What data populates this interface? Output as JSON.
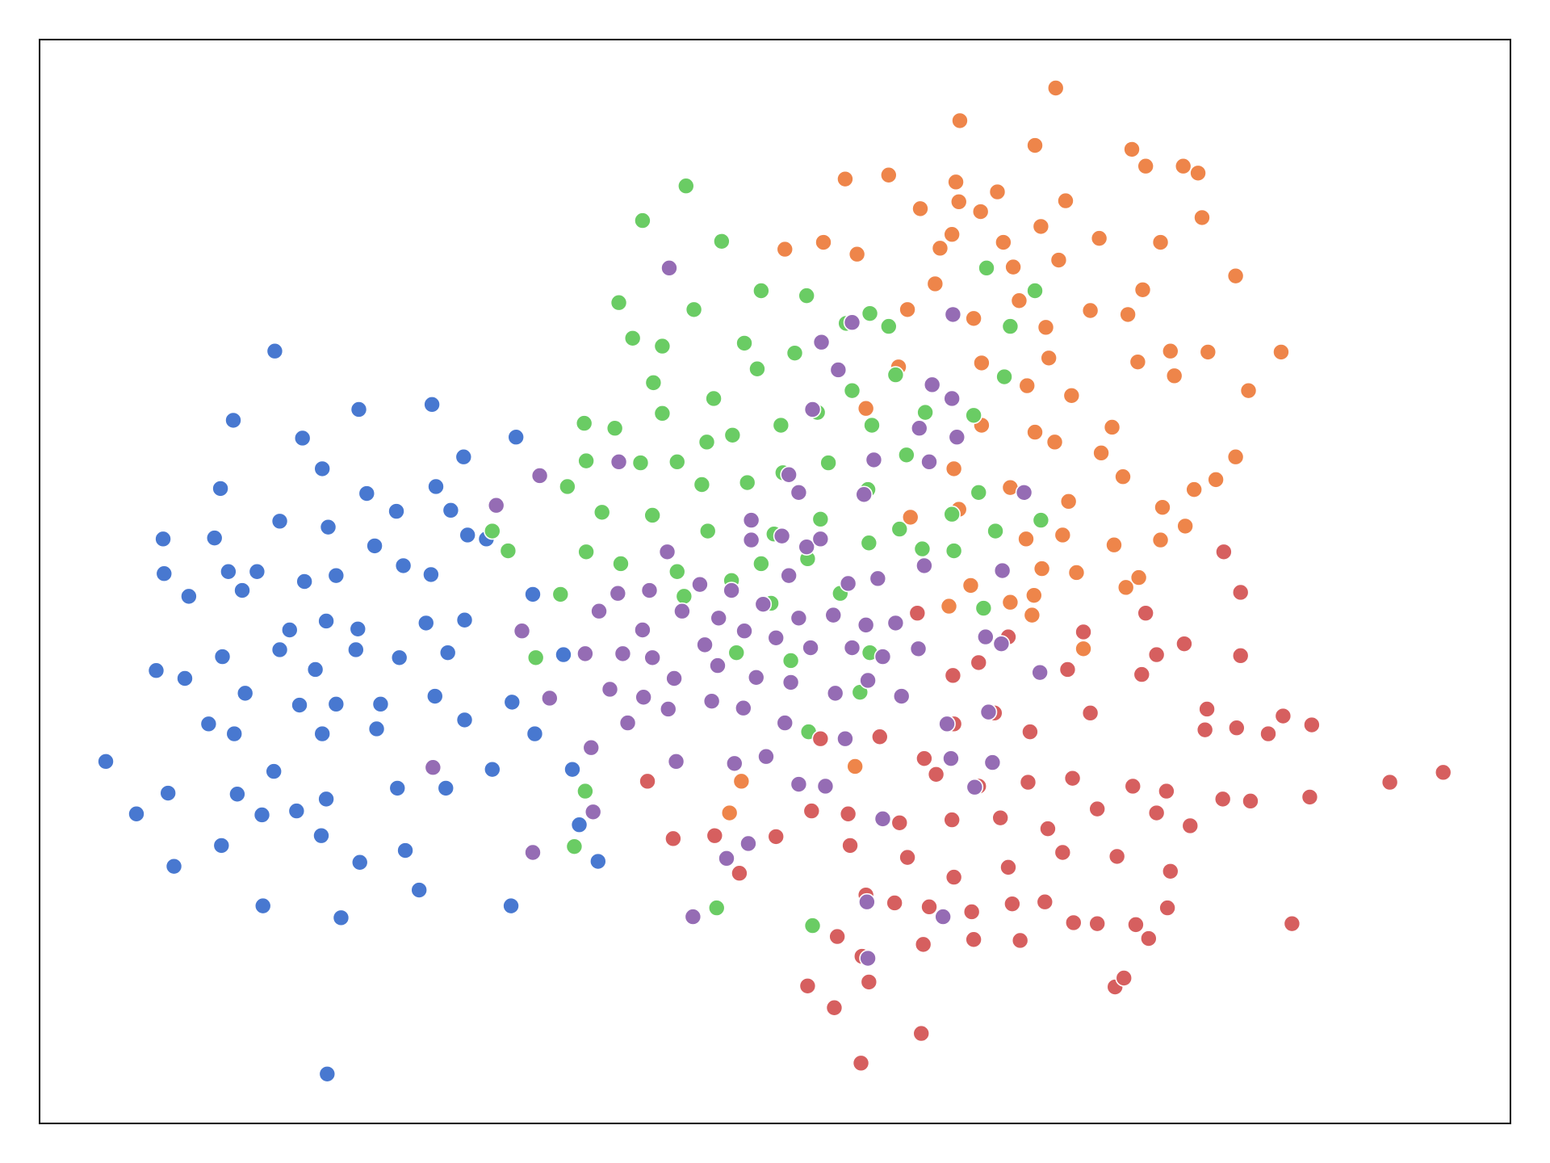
{
  "chart_data": {
    "type": "scatter",
    "xlim": [
      40,
      1528
    ],
    "ylim": [
      40,
      1136
    ],
    "series": [
      {
        "color": "#4878d0",
        "x": [
          278,
          236,
          363,
          437,
          306,
          469,
          522,
          326,
          223,
          371,
          441,
          401,
          456,
          283,
          165,
          217,
          332,
          379,
          473,
          166,
          231,
          260,
          308,
          191,
          245,
          340,
          408,
          436,
          293,
          330,
          362,
          431,
          470,
          158,
          187,
          225,
          283,
          319,
          360,
          404,
          453,
          248,
          303,
          340,
          385,
          440,
          518,
          211,
          237,
          326,
          381,
          470,
          107,
          170,
          138,
          240,
          277,
          330,
          402,
          451,
          498,
          541,
          176,
          224,
          266,
          325,
          364,
          424,
          345,
          517,
          331,
          605,
          586,
          579,
          570,
          539,
          492,
          300,
          265,
          410
        ],
        "y": [
          821,
          751,
          762,
          767,
          733,
          714,
          734,
          702,
          682,
          677,
          684,
          659,
          660,
          649,
          631,
          632,
          643,
          624,
          635,
          596,
          598,
          598,
          588,
          573,
          579,
          594,
          604,
          595,
          539,
          548,
          540,
          546,
          549,
          498,
          490,
          512,
          519,
          499,
          519,
          511,
          516,
          475,
          463,
          464,
          464,
          472,
          466,
          444,
          434,
          434,
          439,
          448,
          406,
          374,
          353,
          373,
          396,
          368,
          379,
          379,
          398,
          434,
          300,
          321,
          260,
          331,
          304,
          276,
          248,
          260,
          90,
          305,
          342,
          398,
          514,
          575,
          631,
          356,
          352,
          316
        ]
      },
      {
        "color": "#ee854a",
        "x": [
          1068,
          971,
          1047,
          1145,
          1159,
          1197,
          1212,
          855,
          899,
          967,
          1009,
          931,
          970,
          992,
          1078,
          1216,
          1053,
          833,
          963,
          1015,
          1112,
          1174,
          794,
          867,
          951,
          1025,
          1071,
          1250,
          946,
          1156,
          1031,
          1103,
          1141,
          918,
          985,
          1058,
          1296,
          1222,
          1184,
          1151,
          993,
          1061,
          1188,
          909,
          1039,
          1084,
          1263,
          1125,
          876,
          993,
          1047,
          1067,
          1250,
          1230,
          1208,
          1136,
          1114,
          965,
          1022,
          1081,
          1176,
          1199,
          1174,
          1127,
          921,
          970,
          1038,
          1075,
          1089,
          1139,
          1152,
          1046,
          1022,
          1044,
          1096,
          960,
          738,
          865,
          750,
          982,
          1054
        ],
        "y": [
          1087,
          1054,
          1029,
          1025,
          1008,
          1008,
          1001,
          995,
          999,
          992,
          982,
          965,
          972,
          962,
          973,
          956,
          947,
          931,
          939,
          931,
          935,
          931,
          924,
          919,
          925,
          906,
          913,
          897,
          889,
          883,
          872,
          862,
          858,
          863,
          854,
          845,
          820,
          820,
          821,
          810,
          809,
          814,
          796,
          805,
          786,
          776,
          781,
          744,
          763,
          746,
          739,
          729,
          714,
          691,
          681,
          694,
          718,
          702,
          683,
          669,
          663,
          644,
          630,
          625,
          653,
          661,
          631,
          635,
          597,
          582,
          592,
          574,
          567,
          554,
          520,
          563,
          354,
          401,
          386,
          584,
          601
        ]
      },
      {
        "color": "#6acc64",
        "x": [
          694,
          650,
          730,
          626,
          702,
          770,
          816,
          640,
          670,
          753,
          804,
          856,
          880,
          899,
          661,
          722,
          766,
          862,
          906,
          998,
          1047,
          1022,
          1016,
          591,
          622,
          670,
          715,
          741,
          790,
          827,
          882,
          936,
          969,
          593,
          574,
          648,
          685,
          710,
          756,
          792,
          838,
          878,
          917,
          985,
          498,
          514,
          609,
          660,
          716,
          783,
          830,
          910,
          1007,
          1053,
          593,
          628,
          567,
          685,
          740,
          770,
          817,
          879,
          933,
          965,
          692,
          780,
          850,
          995,
          542,
          745,
          800,
          880,
          963,
          990,
          592,
          581,
          725,
          822,
          818,
          870
        ],
        "y": [
          988,
          953,
          932,
          870,
          863,
          882,
          877,
          834,
          826,
          829,
          819,
          849,
          859,
          846,
          789,
          773,
          803,
          781,
          797,
          905,
          882,
          846,
          795,
          748,
          743,
          758,
          729,
          736,
          746,
          759,
          746,
          759,
          734,
          710,
          684,
          708,
          709,
          686,
          688,
          698,
          708,
          681,
          716,
          756,
          639,
          619,
          658,
          655,
          639,
          636,
          651,
          641,
          639,
          650,
          618,
          606,
          575,
          598,
          589,
          606,
          611,
          627,
          621,
          619,
          573,
          566,
          576,
          561,
          511,
          516,
          508,
          516,
          656,
          678,
          376,
          320,
          258,
          240,
          436,
          476
        ]
      },
      {
        "color": "#d65f5f",
        "x": [
          1238,
          1255,
          1159,
          1096,
          1020,
          1170,
          1198,
          1255,
          1080,
          1155,
          964,
          1221,
          1298,
          1327,
          1251,
          1283,
          1219,
          1103,
          1042,
          1006,
          965,
          890,
          830,
          935,
          1406,
          1460,
          1325,
          1265,
          1237,
          1180,
          1146,
          1085,
          1040,
          990,
          947,
          655,
          858,
          910,
          963,
          1012,
          1060,
          1110,
          1170,
          1204,
          681,
          723,
          785,
          860,
          918,
          965,
          1020,
          1075,
          1130,
          1184,
          1307,
          748,
          821,
          876,
          905,
          940,
          983,
          1024,
          1057,
          1110,
          1149,
          1181,
          1162,
          1086,
          1032,
          985,
          934,
          847,
          872,
          817,
          844,
          879,
          1128,
          1137,
          932,
          871,
          928,
          990
        ],
        "y": [
          618,
          577,
          556,
          537,
          532,
          514,
          525,
          513,
          499,
          494,
          493,
          459,
          452,
          443,
          440,
          434,
          438,
          455,
          436,
          455,
          444,
          431,
          429,
          409,
          385,
          395,
          370,
          366,
          368,
          376,
          381,
          389,
          385,
          381,
          393,
          386,
          353,
          344,
          347,
          349,
          338,
          358,
          354,
          341,
          328,
          331,
          330,
          321,
          309,
          289,
          299,
          314,
          310,
          295,
          242,
          293,
          356,
          271,
          263,
          259,
          254,
          262,
          264,
          242,
          241,
          258,
          227,
          243,
          225,
          226,
          221,
          229,
          209,
          179,
          157,
          183,
          178,
          187,
          131,
          101,
          556,
          506
        ]
      },
      {
        "color": "#956cb4",
        "x": [
          677,
          964,
          862,
          831,
          848,
          943,
          963,
          822,
          930,
          968,
          884,
          940,
          626,
          546,
          502,
          798,
          808,
          874,
          1036,
          760,
          791,
          816,
          760,
          830,
          675,
          657,
          708,
          740,
          798,
          858,
          888,
          935,
          1014,
          625,
          606,
          650,
          690,
          727,
          772,
          808,
          843,
          876,
          906,
          997,
          1013,
          1052,
          528,
          592,
          630,
          660,
          713,
          753,
          785,
          820,
          862,
          893,
          929,
          556,
          617,
          651,
          682,
          726,
          765,
          800,
          845,
          878,
          912,
          1000,
          598,
          635,
          676,
          720,
          752,
          794,
          855,
          958,
          962,
          1004,
          986,
          438,
          684,
          743,
          775,
          808,
          835,
          893,
          539,
          600,
          735,
          757,
          877,
          954,
          878,
          701
        ],
        "y": [
          905,
          858,
          850,
          830,
          802,
          787,
          773,
          762,
          743,
          734,
          711,
          709,
          709,
          695,
          665,
          696,
          678,
          676,
          678,
          650,
          634,
          623,
          630,
          631,
          618,
          579,
          585,
          579,
          594,
          586,
          591,
          604,
          599,
          576,
          558,
          539,
          558,
          551,
          565,
          551,
          554,
          544,
          546,
          532,
          525,
          496,
          538,
          515,
          515,
          511,
          524,
          538,
          531,
          521,
          521,
          512,
          520,
          470,
          479,
          471,
          490,
          503,
          491,
          486,
          475,
          488,
          472,
          456,
          420,
          445,
          459,
          467,
          460,
          445,
          429,
          444,
          409,
          405,
          380,
          400,
          406,
          404,
          411,
          383,
          381,
          348,
          314,
          355,
          308,
          323,
          264,
          249,
          207,
          249
        ]
      }
    ]
  }
}
